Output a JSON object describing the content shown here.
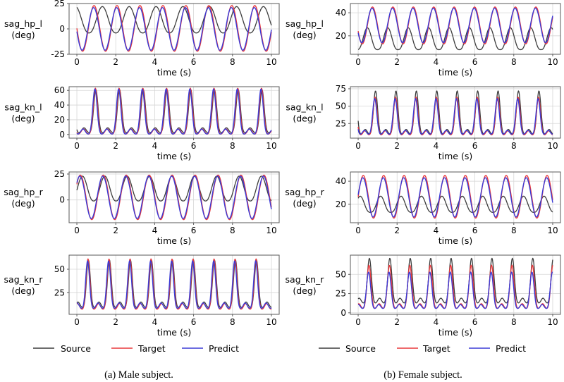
{
  "chart_data": [
    {
      "id": "male_hp_l",
      "type": "line",
      "panel": "Male subject",
      "ylabel_line1": "sag_hp_l",
      "ylabel_line2": "(deg)",
      "xlabel": "time (s)",
      "xlim": [
        -0.4,
        10.4
      ],
      "ylim": [
        -25,
        25
      ],
      "xticks": [
        0,
        2,
        4,
        6,
        8,
        10
      ],
      "yticks": [
        -25,
        0,
        25
      ],
      "series": [
        {
          "name": "Source",
          "period": 1.38,
          "phase": 0.05,
          "min": -4,
          "max": 22,
          "sharp": 1.2
        },
        {
          "name": "Target",
          "period": 1.18,
          "phase": 0.25,
          "min": -22,
          "max": 23,
          "sharp": 1.0
        },
        {
          "name": "Predict",
          "period": 1.18,
          "phase": 0.27,
          "min": -21,
          "max": 21,
          "sharp": 1.0
        }
      ]
    },
    {
      "id": "male_kn_l",
      "type": "line",
      "panel": "Male subject",
      "ylabel_line1": "sag_kn_l",
      "ylabel_line2": "(deg)",
      "xlabel": "time (s)",
      "xlim": [
        -0.4,
        10.4
      ],
      "ylim": [
        -5,
        65
      ],
      "xticks": [
        0,
        2,
        4,
        6,
        8,
        10
      ],
      "yticks": [
        0,
        20,
        40,
        60
      ],
      "series": [
        {
          "name": "Source",
          "period": 1.22,
          "phase": 0.2,
          "min": 2,
          "max": 61,
          "sharp": 6
        },
        {
          "name": "Target",
          "period": 1.22,
          "phase": 0.22,
          "min": 0,
          "max": 63,
          "sharp": 6
        },
        {
          "name": "Predict",
          "period": 1.22,
          "phase": 0.24,
          "min": 0,
          "max": 62,
          "sharp": 6
        }
      ]
    },
    {
      "id": "male_hp_r",
      "type": "line",
      "panel": "Male subject",
      "ylabel_line1": "sag_hp_r",
      "ylabel_line2": "(deg)",
      "xlabel": "time (s)",
      "xlim": [
        -0.4,
        10.4
      ],
      "ylim": [
        -22,
        27
      ],
      "xticks": [
        0,
        2,
        4,
        6,
        8,
        10
      ],
      "yticks": [
        0,
        25
      ],
      "series": [
        {
          "name": "Source",
          "period": 1.15,
          "phase": 0.75,
          "min": -1,
          "max": 23,
          "sharp": 1.2
        },
        {
          "name": "Target",
          "period": 1.18,
          "phase": 0.85,
          "min": -19,
          "max": 24,
          "sharp": 1.0
        },
        {
          "name": "Predict",
          "period": 1.18,
          "phase": 0.87,
          "min": -18,
          "max": 23,
          "sharp": 1.0
        }
      ]
    },
    {
      "id": "male_kn_r",
      "type": "line",
      "panel": "Male subject",
      "ylabel_line1": "sag_kn_r",
      "ylabel_line2": "(deg)",
      "xlabel": "time (s)",
      "xlim": [
        -0.4,
        10.4
      ],
      "ylim": [
        2,
        65
      ],
      "xticks": [
        0,
        2,
        4,
        6,
        8,
        10
      ],
      "yticks": [
        25,
        50
      ],
      "series": [
        {
          "name": "Source",
          "period": 1.08,
          "phase": 0.45,
          "min": 9,
          "max": 60,
          "sharp": 6
        },
        {
          "name": "Target",
          "period": 1.08,
          "phase": 0.47,
          "min": 7,
          "max": 61,
          "sharp": 6
        },
        {
          "name": "Predict",
          "period": 1.08,
          "phase": 0.49,
          "min": 8,
          "max": 59,
          "sharp": 6
        }
      ]
    },
    {
      "id": "female_hp_l",
      "type": "line",
      "panel": "Female subject",
      "ylabel_line1": "sag_hp_l",
      "ylabel_line2": "(deg)",
      "xlabel": "time (s)",
      "xlim": [
        -0.4,
        10.4
      ],
      "ylim": [
        4,
        48
      ],
      "xticks": [
        0,
        2,
        4,
        6,
        8,
        10
      ],
      "yticks": [
        20,
        40
      ],
      "series": [
        {
          "name": "Source",
          "period": 1.05,
          "phase": 0.55,
          "min": 8,
          "max": 27,
          "sharp": 1.4
        },
        {
          "name": "Target",
          "period": 1.05,
          "phase": 0.3,
          "min": 13,
          "max": 45,
          "sharp": 1.0
        },
        {
          "name": "Predict",
          "period": 1.05,
          "phase": 0.32,
          "min": 14,
          "max": 44,
          "sharp": 1.0
        }
      ]
    },
    {
      "id": "female_kn_l",
      "type": "line",
      "panel": "Female subject",
      "ylabel_line1": "sag_kn_l",
      "ylabel_line2": "(deg)",
      "xlabel": "time (s)",
      "xlim": [
        -0.4,
        10.4
      ],
      "ylim": [
        4,
        78
      ],
      "xticks": [
        0,
        2,
        4,
        6,
        8,
        10
      ],
      "yticks": [
        25,
        50,
        75
      ],
      "series": [
        {
          "name": "Source",
          "period": 1.05,
          "phase": 0.15,
          "min": 9,
          "max": 72,
          "sharp": 5
        },
        {
          "name": "Target",
          "period": 1.05,
          "phase": 0.17,
          "min": 8,
          "max": 63,
          "sharp": 5
        },
        {
          "name": "Predict",
          "period": 1.05,
          "phase": 0.19,
          "min": 9,
          "max": 61,
          "sharp": 5
        }
      ]
    },
    {
      "id": "female_hp_r",
      "type": "line",
      "panel": "Female subject",
      "ylabel_line1": "sag_hp_r",
      "ylabel_line2": "(deg)",
      "xlabel": "time (s)",
      "xlim": [
        -0.4,
        10.4
      ],
      "ylim": [
        4,
        48
      ],
      "xticks": [
        0,
        2,
        4,
        6,
        8,
        10
      ],
      "yticks": [
        20,
        40
      ],
      "series": [
        {
          "name": "Source",
          "period": 1.05,
          "phase": 0.9,
          "min": 13,
          "max": 27,
          "sharp": 1.4
        },
        {
          "name": "Target",
          "period": 1.05,
          "phase": 0.75,
          "min": 8,
          "max": 45,
          "sharp": 1.0
        },
        {
          "name": "Predict",
          "period": 1.05,
          "phase": 0.77,
          "min": 9,
          "max": 43,
          "sharp": 1.0
        }
      ]
    },
    {
      "id": "female_kn_r",
      "type": "line",
      "panel": "Female subject",
      "ylabel_line1": "sag_kn_r",
      "ylabel_line2": "(deg)",
      "xlabel": "time (s)",
      "xlim": [
        -0.4,
        10.4
      ],
      "ylim": [
        -2,
        75
      ],
      "xticks": [
        0,
        2,
        4,
        6,
        8,
        10
      ],
      "yticks": [
        0,
        25,
        50
      ],
      "series": [
        {
          "name": "Source",
          "period": 1.05,
          "phase": 0.45,
          "min": 12,
          "max": 71,
          "sharp": 5
        },
        {
          "name": "Target",
          "period": 1.05,
          "phase": 0.47,
          "min": 5,
          "max": 62,
          "sharp": 5
        },
        {
          "name": "Predict",
          "period": 1.05,
          "phase": 0.49,
          "min": 5,
          "max": 53,
          "sharp": 5
        }
      ]
    }
  ],
  "legend": {
    "items": [
      "Source",
      "Target",
      "Predict"
    ]
  },
  "colors": {
    "Source": "#3c3c3c",
    "Target": "#e8393c",
    "Predict": "#3b3bd6",
    "grid": "#d6d6d6",
    "axis": "#5a5a5a"
  },
  "captions": {
    "left": "(a) Male subject.",
    "right": "(b) Female subject."
  }
}
